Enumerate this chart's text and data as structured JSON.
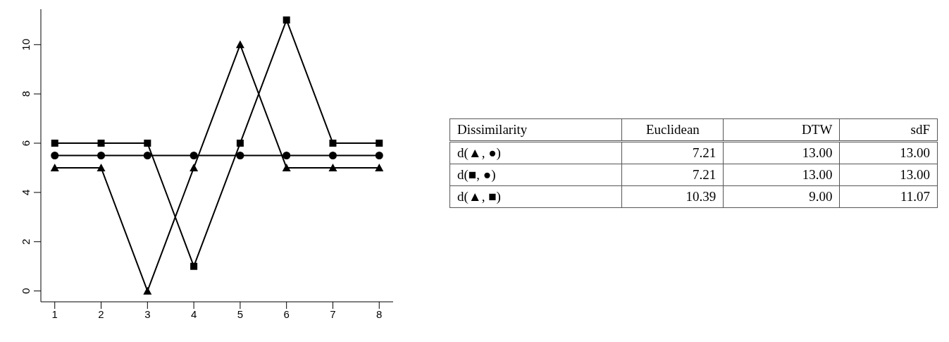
{
  "chart_data": [
    {
      "type": "line",
      "categories": [
        "1",
        "2",
        "3",
        "4",
        "5",
        "6",
        "7",
        "8"
      ],
      "series": [
        {
          "color": "#000000",
          "marker": "triangle",
          "values": [
            5,
            5,
            0,
            5,
            10,
            5,
            5,
            5
          ]
        },
        {
          "color": "#000000",
          "marker": "circle",
          "values": [
            5.5,
            5.5,
            5.5,
            5.5,
            5.5,
            5.5,
            5.5,
            5.5
          ]
        },
        {
          "color": "#000000",
          "marker": "square",
          "values": [
            6,
            6,
            6,
            1,
            6,
            11,
            6,
            6
          ]
        }
      ],
      "ylim": [
        -0.44,
        11.44
      ],
      "yticks": [
        0,
        2,
        4,
        6,
        8,
        10
      ],
      "grid": false,
      "line_style": "solid"
    },
    {
      "type": "other",
      "annotations": [
        "Dissimilarity",
        "Euclidean",
        "DTW",
        "sdF",
        "d(▲, ●)",
        "7.21",
        "13.00",
        "13.00",
        "d(■, ●)",
        "7.21",
        "13.00",
        "13.00",
        "d(▲, ■)",
        "10.39",
        "9.00",
        "11.07"
      ]
    }
  ]
}
